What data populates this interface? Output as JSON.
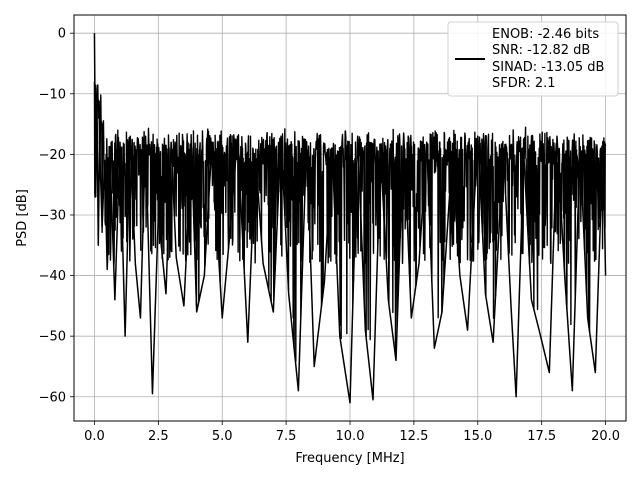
{
  "chart_data": {
    "type": "line",
    "title": "",
    "xlabel": "Frequency [MHz]",
    "ylabel": "PSD [dB]",
    "xlim": [
      -0.8,
      20.8
    ],
    "ylim": [
      -64,
      3.0
    ],
    "xticks": [
      0.0,
      2.5,
      5.0,
      7.5,
      10.0,
      12.5,
      15.0,
      17.5,
      20.0
    ],
    "xtick_labels": [
      "0.0",
      "2.5",
      "5.0",
      "7.5",
      "10.0",
      "12.5",
      "15.0",
      "17.5",
      "20.0"
    ],
    "yticks": [
      0,
      -10,
      -20,
      -30,
      -40,
      -50,
      -60
    ],
    "ytick_labels": [
      "0",
      "−10",
      "−20",
      "−30",
      "−40",
      "−50",
      "−60"
    ],
    "grid": true,
    "legend_position": "top-right",
    "line_color": "#000000",
    "series": [
      {
        "legend_lines": [
          "ENOB: -2.46 bits",
          "SNR: -12.82 dB",
          "SINAD: -13.05 dB",
          "SFDR: 2.1"
        ],
        "x": [
          0.0,
          0.05,
          0.1,
          0.15,
          0.2,
          0.3,
          0.4,
          0.5,
          0.6,
          0.8,
          1.0,
          1.2,
          1.4,
          1.6,
          1.8,
          2.0,
          2.27,
          2.5,
          2.8,
          3.0,
          3.2,
          3.5,
          3.8,
          4.0,
          4.3,
          4.6,
          5.0,
          5.3,
          5.6,
          6.0,
          6.3,
          6.6,
          7.0,
          7.3,
          7.6,
          7.98,
          8.3,
          8.6,
          9.0,
          9.3,
          9.6,
          10.0,
          10.3,
          10.6,
          10.9,
          11.2,
          11.5,
          11.8,
          12.1,
          12.4,
          12.7,
          13.0,
          13.3,
          13.6,
          14.0,
          14.3,
          14.6,
          15.0,
          15.3,
          15.6,
          16.0,
          16.3,
          16.5,
          16.8,
          17.1,
          17.4,
          17.8,
          18.1,
          18.4,
          18.7,
          19.0,
          19.3,
          19.6,
          19.9,
          20.0
        ],
        "y": [
          0,
          -27,
          -12,
          -35,
          -18,
          -32,
          -21,
          -39,
          -19,
          -44,
          -18,
          -50,
          -17,
          -38,
          -47,
          -17,
          -59.5,
          -30,
          -43,
          -18,
          -37,
          -45,
          -19,
          -46,
          -40,
          -18,
          -47,
          -33,
          -17,
          -51,
          -20,
          -38,
          -46,
          -17,
          -43,
          -59,
          -18,
          -55,
          -41,
          -19,
          -50,
          -61,
          -17,
          -49,
          -60.5,
          -20,
          -44,
          -54,
          -16.5,
          -47,
          -38,
          -18,
          -52,
          -46,
          -20,
          -40,
          -49,
          -17,
          -43,
          -51,
          -19,
          -45,
          -60,
          -20,
          -44,
          -49,
          -56,
          -17,
          -40,
          -59,
          -19,
          -47,
          -56,
          -18,
          -40
        ]
      }
    ]
  }
}
